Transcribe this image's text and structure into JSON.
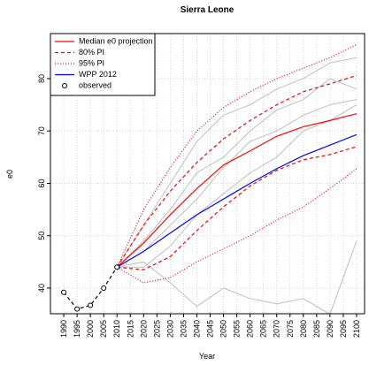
{
  "chart_data": {
    "type": "line",
    "title": "Sierra Leone",
    "xlabel": "Year",
    "ylabel": "e0",
    "xlim": [
      1985,
      2103
    ],
    "ylim": [
      35.1,
      88.6
    ],
    "xticks": [
      1990,
      1995,
      2000,
      2005,
      2010,
      2015,
      2020,
      2025,
      2030,
      2035,
      2040,
      2045,
      2050,
      2055,
      2060,
      2065,
      2070,
      2075,
      2080,
      2085,
      2090,
      2095,
      2100
    ],
    "yticks": [
      40,
      50,
      60,
      70,
      80
    ],
    "grid": true,
    "legend": "topleft",
    "trajectories": {
      "color": "#bebebe",
      "x": [
        2010,
        2020,
        2030,
        2040,
        2050,
        2060,
        2070,
        2080,
        2090,
        2100
      ],
      "values": [
        [
          44,
          49,
          55,
          62,
          65,
          70,
          74,
          76,
          80,
          78
        ],
        [
          44,
          47,
          52,
          57,
          63,
          68,
          70,
          73,
          75,
          76
        ],
        [
          44,
          45,
          41,
          36.5,
          40,
          38,
          37,
          38,
          35,
          49
        ],
        [
          44,
          52,
          60,
          68,
          73,
          75,
          78,
          80,
          83,
          84
        ],
        [
          44,
          44,
          48,
          54,
          58,
          62,
          65,
          70,
          72,
          75
        ]
      ]
    },
    "series": [
      {
        "name": "Median e0 projection",
        "color": "#ff0000",
        "style": "solid",
        "x": [
          2010,
          2020,
          2030,
          2040,
          2050,
          2060,
          2070,
          2080,
          2090,
          2100
        ],
        "values": [
          44,
          48.6,
          54,
          59,
          63.5,
          66.2,
          69,
          70.8,
          72,
          73.3
        ]
      },
      {
        "name": "80% PI",
        "color": "#ff0000",
        "style": "dashed",
        "x": [
          2010,
          2020,
          2030,
          2040,
          2050,
          2060,
          2070,
          2080,
          2090,
          2100
        ],
        "upper": [
          44,
          52,
          58.5,
          64,
          68.5,
          72,
          75,
          77.5,
          79,
          80.6
        ],
        "lower": [
          44,
          43.5,
          46,
          51,
          55.5,
          59.5,
          62.5,
          64.5,
          65.5,
          67
        ]
      },
      {
        "name": "95% PI",
        "color": "#ff0000",
        "style": "dotted",
        "x": [
          2010,
          2020,
          2030,
          2040,
          2050,
          2060,
          2070,
          2080,
          2090,
          2100
        ],
        "upper": [
          44,
          55,
          63,
          70,
          74.5,
          77.5,
          80,
          82,
          84,
          86.5
        ],
        "lower": [
          44,
          41,
          42,
          45,
          47.5,
          50,
          53,
          55.5,
          59,
          62.8
        ]
      },
      {
        "name": "WPP 2012",
        "color": "#0000ff",
        "style": "solid",
        "x": [
          2010,
          2020,
          2030,
          2040,
          2050,
          2060,
          2070,
          2080,
          2090,
          2100
        ],
        "values": [
          44,
          47,
          50.5,
          54,
          57,
          60,
          62.8,
          65.3,
          67.3,
          69.3
        ]
      },
      {
        "name": "observed",
        "color": "#000000",
        "style": "dashed",
        "marker": "circle",
        "x": [
          1990,
          1995,
          2000,
          2005,
          2010
        ],
        "values": [
          39.2,
          36,
          36.7,
          40,
          44
        ]
      }
    ]
  }
}
